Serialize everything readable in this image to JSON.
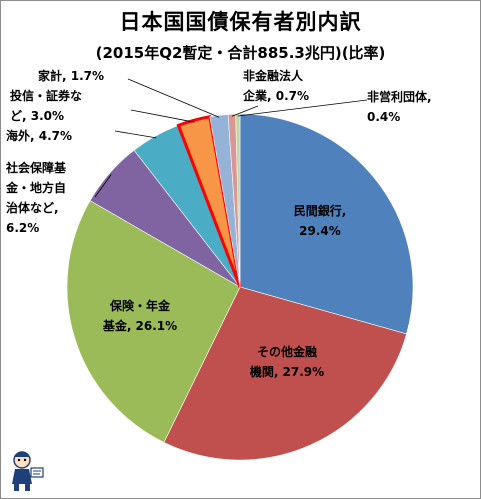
{
  "chart_data": {
    "type": "pie",
    "title": "日本国国債保有者別内訳",
    "subtitle": "(2015年Q2暫定・合計885.3兆円)(比率)",
    "start_angle_deg": 0,
    "direction": "clockwise",
    "slices": [
      {
        "name": "民間銀行",
        "value": 29.4,
        "color": "#4f81bd",
        "label_lines": [
          "民間銀行,",
          "29.4%"
        ]
      },
      {
        "name": "その他金融機関",
        "value": 27.9,
        "color": "#c0504d",
        "label_lines": [
          "その他金融",
          "機関, 27.9%"
        ]
      },
      {
        "name": "保険・年金基金",
        "value": 26.1,
        "color": "#9bbb59",
        "label_lines": [
          "保険・年金",
          "基金, 26.1%"
        ]
      },
      {
        "name": "社会保障基金・地方自治体など",
        "value": 6.2,
        "color": "#8064a2",
        "label_lines": [
          "社会保障基",
          "金・地方自",
          "治体など,",
          "6.2%"
        ]
      },
      {
        "name": "海外",
        "value": 4.7,
        "color": "#4bacc6",
        "label_lines": [
          "海外, 4.7%"
        ]
      },
      {
        "name": "投信・証券など",
        "value": 3.0,
        "color": "#f79646",
        "highlight": true,
        "label_lines": [
          "投信・証券な",
          "ど, 3.0%"
        ]
      },
      {
        "name": "家計",
        "value": 1.7,
        "color": "#95b3d7",
        "label_lines": [
          "家計, 1.7%"
        ]
      },
      {
        "name": "非金融法人企業",
        "value": 0.7,
        "color": "#d99694",
        "label_lines": [
          "非金融法人",
          "企業, 0.7%"
        ]
      },
      {
        "name": "非営利団体",
        "value": 0.4,
        "color": "#c3d69b",
        "label_lines": [
          "非営利団体,",
          "0.4%"
        ]
      }
    ],
    "highlight_color": "#ff0000",
    "legend": "none"
  }
}
